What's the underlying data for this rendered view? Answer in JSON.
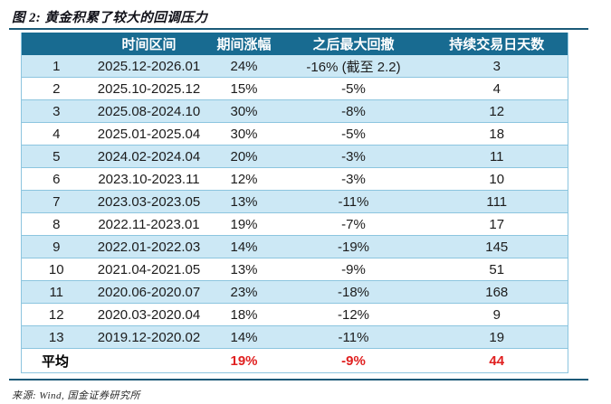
{
  "title": "图 2: 黄金积累了较大的回调压力",
  "source": "来源: Wind, 国金证券研究所",
  "colors": {
    "header_bg": "#186b91",
    "row_alt_bg": "#cce8f5",
    "row_border": "#8cc5df",
    "rule": "#1b5a78",
    "summary_value": "#e02020"
  },
  "table": {
    "headers": [
      "",
      "时间区间",
      "期间涨幅",
      "之后最大回撤",
      "持续交易日天数"
    ],
    "rows": [
      [
        "1",
        "2025.12-2026.01",
        "24%",
        "-16% (截至 2.2)",
        "3"
      ],
      [
        "2",
        "2025.10-2025.12",
        "15%",
        "-5%",
        "4"
      ],
      [
        "3",
        "2025.08-2024.10",
        "30%",
        "-8%",
        "12"
      ],
      [
        "4",
        "2025.01-2025.04",
        "30%",
        "-5%",
        "18"
      ],
      [
        "5",
        "2024.02-2024.04",
        "20%",
        "-3%",
        "11"
      ],
      [
        "6",
        "2023.10-2023.11",
        "12%",
        "-3%",
        "10"
      ],
      [
        "7",
        "2023.03-2023.05",
        "13%",
        "-11%",
        "111"
      ],
      [
        "8",
        "2022.11-2023.01",
        "19%",
        "-7%",
        "17"
      ],
      [
        "9",
        "2022.01-2022.03",
        "14%",
        "-19%",
        "145"
      ],
      [
        "10",
        "2021.04-2021.05",
        "13%",
        "-9%",
        "51"
      ],
      [
        "11",
        "2020.06-2020.07",
        "23%",
        "-18%",
        "168"
      ],
      [
        "12",
        "2020.03-2020.04",
        "18%",
        "-12%",
        "9"
      ],
      [
        "13",
        "2019.12-2020.02",
        "14%",
        "-11%",
        "19"
      ]
    ],
    "summary": {
      "label": "平均",
      "gain": "19%",
      "drawdown": "-9%",
      "days": "44"
    }
  }
}
